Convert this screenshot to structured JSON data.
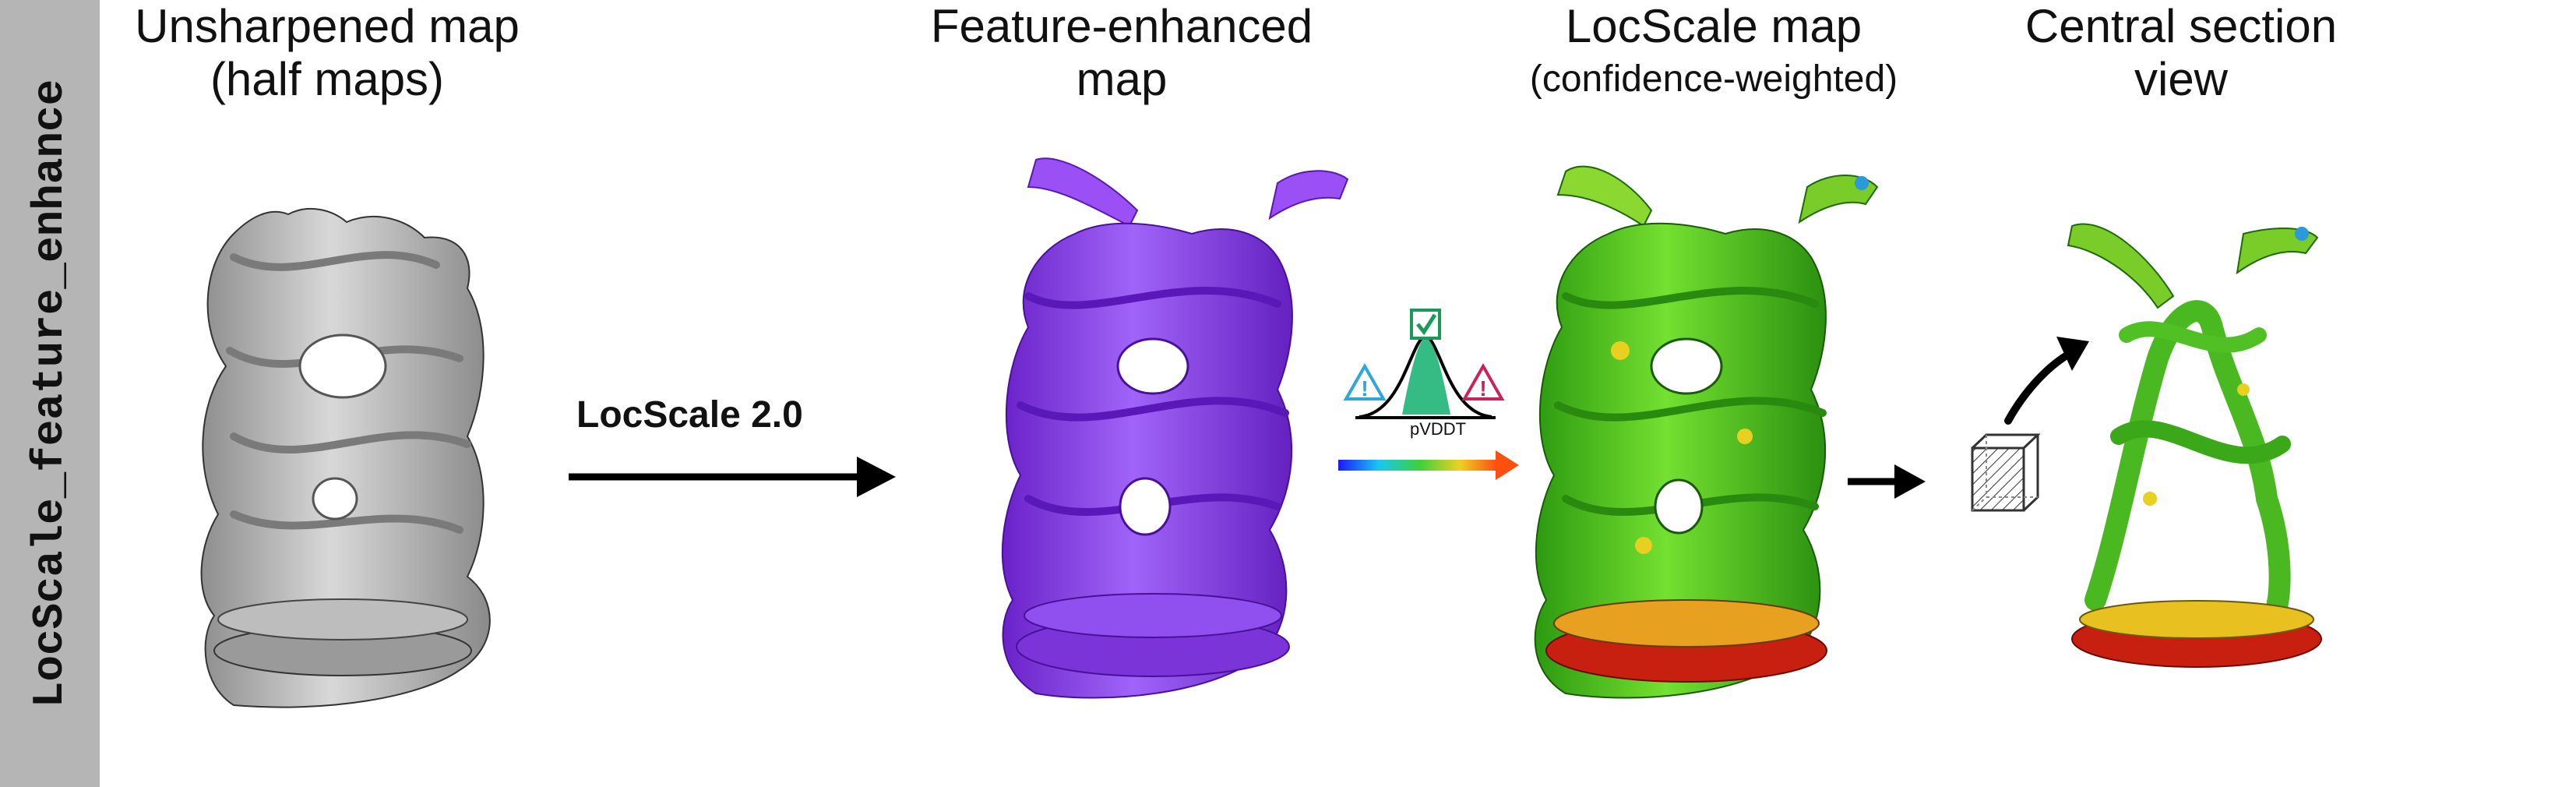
{
  "sidebar": {
    "label": "LocScale_feature_enhance"
  },
  "panels": {
    "unsharpened": {
      "line1": "Unsharpened map",
      "line2": "(half maps)"
    },
    "feature": {
      "line1": "Feature-enhanced",
      "line2": "map"
    },
    "locscale": {
      "line1": "LocScale map",
      "line2": "(confidence-weighted)"
    },
    "central": {
      "line1": "Central section",
      "line2": "view"
    }
  },
  "step": {
    "label": "LocScale 2.0"
  },
  "legend": {
    "label": "pVDDT"
  },
  "colors": {
    "gray_map": "#bdbdbd",
    "purple_map": "#8a3cf0",
    "green_map": "#3cc21a",
    "low_confidence": "#e01010",
    "warning_blue": "#2ea6d8",
    "warning_red": "#c8245a",
    "check_green": "#1a9a5a"
  },
  "icons": [
    "warning-blue-icon",
    "checkmark-box-icon",
    "warning-red-icon",
    "gauss-curve-icon",
    "cube-section-icon"
  ]
}
